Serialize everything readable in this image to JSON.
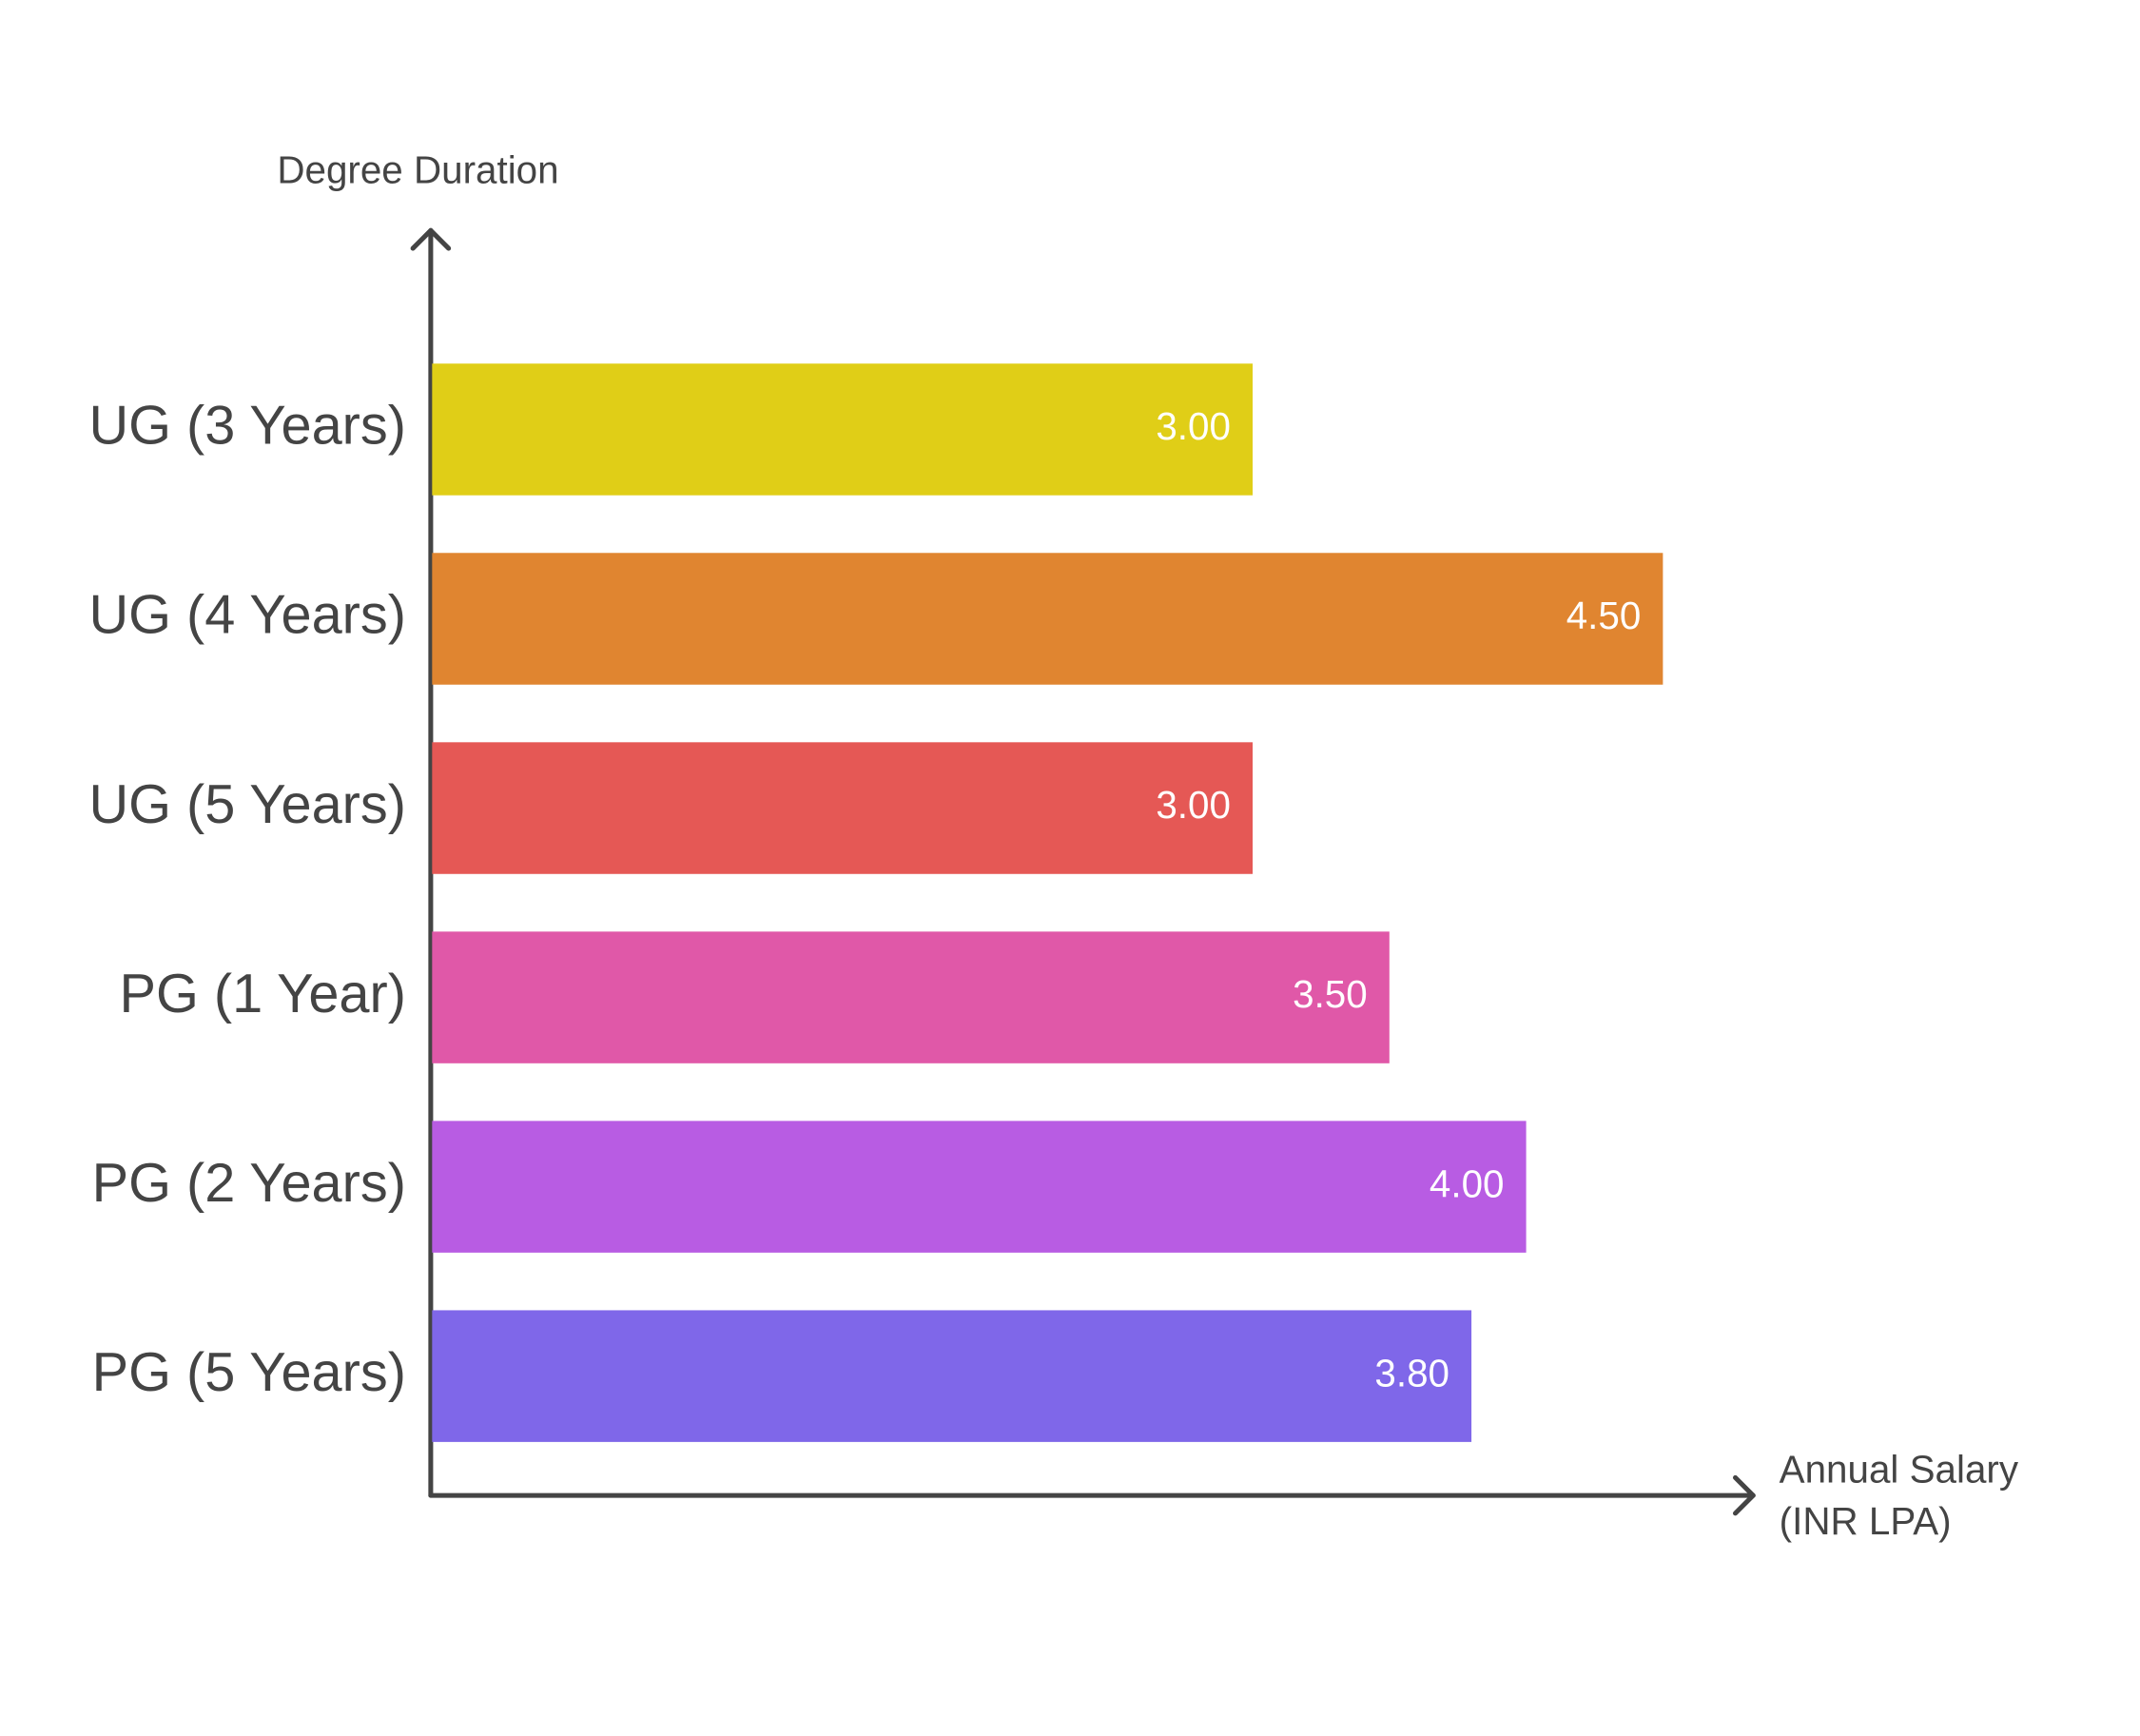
{
  "chart_data": {
    "type": "hbar",
    "y_label": "Degree Duration",
    "x_label": [
      "Annual Salary",
      "(INR LPA)"
    ],
    "categories": [
      "UG (3 Years)",
      "UG (4 Years)",
      "UG (5 Years)",
      "PG (1 Year)",
      "PG (2 Years)",
      "PG (5 Years)"
    ],
    "values": [
      3,
      4.5,
      3,
      3.5,
      4,
      3.8
    ],
    "value_labels": [
      "3.00",
      "4.50",
      "3.00",
      "3.50",
      "4.00",
      "3.80"
    ],
    "colors": [
      "#e0ce17",
      "#e08530",
      "#e55855",
      "#e058a8",
      "#b85ce3",
      "#7f67e9"
    ],
    "xlim": [
      0,
      4.83
    ]
  }
}
